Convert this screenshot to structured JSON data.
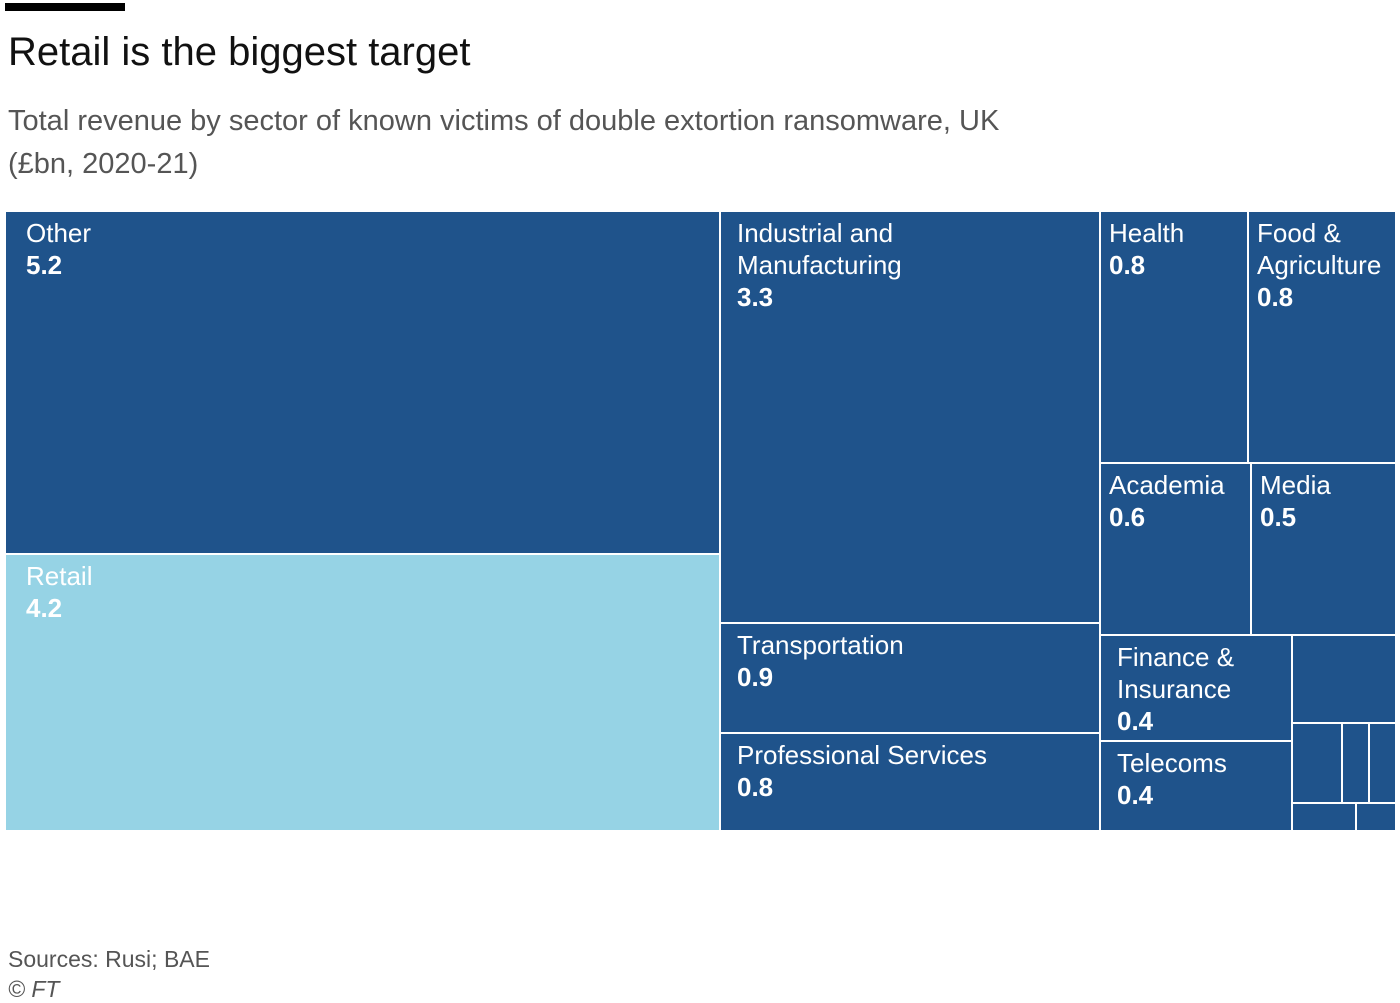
{
  "title": "Retail is the biggest target",
  "subtitle": "Total revenue by sector of known victims of double extortion ransomware, UK (£bn, 2020-21)",
  "source": "Sources: Rusi; BAE",
  "copyright": "© FT",
  "colors": {
    "dark": "#1f538b",
    "highlight": "#96d3e5",
    "border": "#ffffff",
    "text_muted": "#555555"
  },
  "chart_data": {
    "type": "treemap",
    "unit": "£bn",
    "items": [
      {
        "name": "Other",
        "lines": [
          "Other"
        ],
        "value": 5.2,
        "label": "5.2",
        "highlight": false
      },
      {
        "name": "Retail",
        "lines": [
          "Retail"
        ],
        "value": 4.2,
        "label": "4.2",
        "highlight": true
      },
      {
        "name": "Industrial and Manufacturing",
        "lines": [
          "Industrial and",
          "Manufacturing"
        ],
        "value": 3.3,
        "label": "3.3",
        "highlight": false
      },
      {
        "name": "Transportation",
        "lines": [
          "Transportation"
        ],
        "value": 0.9,
        "label": "0.9",
        "highlight": false
      },
      {
        "name": "Professional Services",
        "lines": [
          "Professional Services"
        ],
        "value": 0.8,
        "label": "0.8",
        "highlight": false
      },
      {
        "name": "Health",
        "lines": [
          "Health"
        ],
        "value": 0.8,
        "label": "0.8",
        "highlight": false
      },
      {
        "name": "Food & Agriculture",
        "lines": [
          "Food &",
          "Agriculture"
        ],
        "value": 0.8,
        "label": "0.8",
        "highlight": false
      },
      {
        "name": "Academia",
        "lines": [
          "Academia"
        ],
        "value": 0.6,
        "label": "0.6",
        "highlight": false
      },
      {
        "name": "Media",
        "lines": [
          "Media"
        ],
        "value": 0.5,
        "label": "0.5",
        "highlight": false
      },
      {
        "name": "Finance & Insurance",
        "lines": [
          "Finance &",
          "Insurance"
        ],
        "value": 0.4,
        "label": "0.4",
        "highlight": false
      },
      {
        "name": "Telecoms",
        "lines": [
          "Telecoms"
        ],
        "value": 0.4,
        "label": "0.4",
        "highlight": false
      }
    ],
    "unlabeled_small_segments": 6
  }
}
